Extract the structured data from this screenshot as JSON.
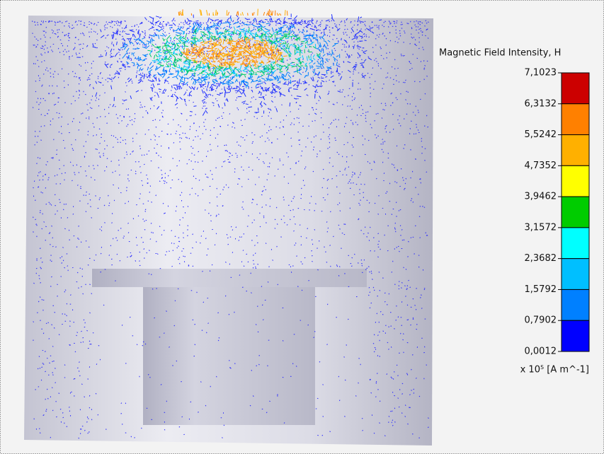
{
  "legend": {
    "title": "Magnetic Field Intensity, H",
    "ticks": [
      "7,1023",
      "6,3132",
      "5,5242",
      "4,7352",
      "3,9462",
      "3,1572",
      "2,3682",
      "1,5792",
      "0,7902",
      "0,0012"
    ],
    "unit": "x 10⁵ [A m^-1]"
  }
}
